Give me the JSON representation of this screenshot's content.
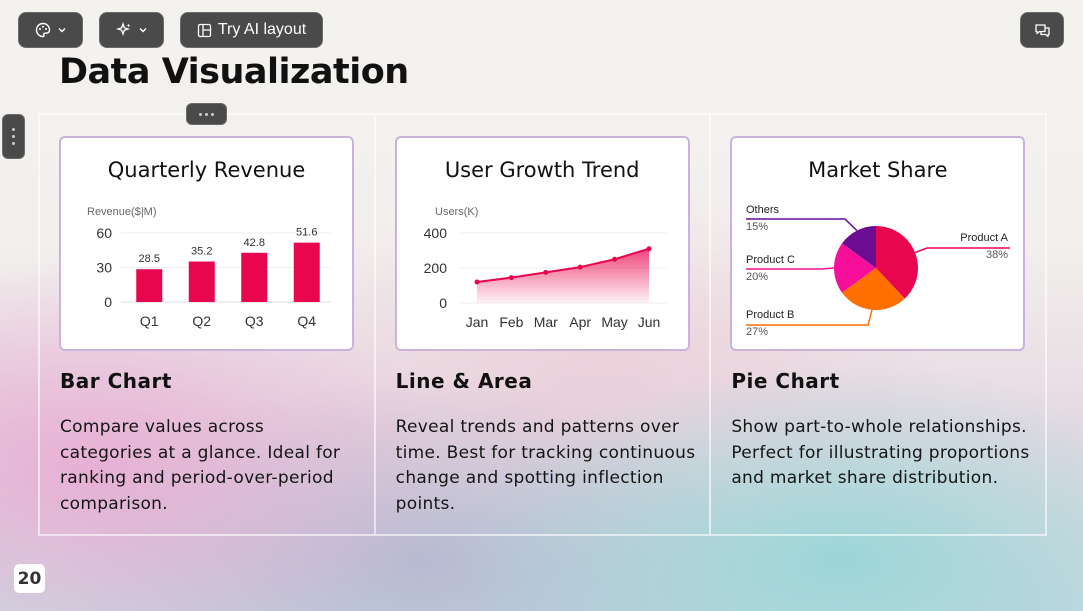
{
  "toolbar": {
    "theme_icon": "palette-icon",
    "ai_icon": "sparkle-icon",
    "layout_label": "Try AI layout",
    "layout_icon": "layout-icon",
    "comment_icon": "comment-icon"
  },
  "slide": {
    "title": "Data Visualization",
    "page_number": "20"
  },
  "columns": [
    {
      "card_title": "Quarterly Revenue",
      "heading": "Bar Chart",
      "description": "Compare values across categories at a glance. Ideal for ranking and period-over-period comparison."
    },
    {
      "card_title": "User Growth Trend",
      "heading": "Line & Area",
      "description": "Reveal trends and patterns over time. Best for tracking continuous change and spotting inflection points."
    },
    {
      "card_title": "Market Share",
      "heading": "Pie Chart",
      "description": "Show part-to-whole relationships. Perfect for illustrating proportions and market share distribution."
    }
  ],
  "chart_data": [
    {
      "type": "bar",
      "title": "Quarterly Revenue",
      "ylabel": "Revenue($|M)",
      "categories": [
        "Q1",
        "Q2",
        "Q3",
        "Q4"
      ],
      "values": [
        28.5,
        35.2,
        42.8,
        51.6
      ],
      "yticks": [
        0,
        30,
        60
      ],
      "ylim": [
        0,
        60
      ],
      "color": "#e8064f",
      "grid": true
    },
    {
      "type": "area",
      "title": "User Growth Trend",
      "ylabel": "Users(K)",
      "categories": [
        "Jan",
        "Feb",
        "Mar",
        "Apr",
        "May",
        "Jun"
      ],
      "values": [
        120,
        145,
        175,
        205,
        250,
        310
      ],
      "yticks": [
        0,
        200,
        400
      ],
      "ylim": [
        0,
        400
      ],
      "color": "#e8064f",
      "grid": true
    },
    {
      "type": "pie",
      "title": "Market Share",
      "slices": [
        {
          "label": "Product A",
          "value": 38,
          "pct": "38%",
          "color": "#e8064f"
        },
        {
          "label": "Product B",
          "value": 27,
          "pct": "27%",
          "color": "#ff6f00"
        },
        {
          "label": "Product C",
          "value": 20,
          "pct": "20%",
          "color": "#f50f9a"
        },
        {
          "label": "Others",
          "value": 15,
          "pct": "15%",
          "color": "#6a0d91"
        }
      ]
    }
  ]
}
